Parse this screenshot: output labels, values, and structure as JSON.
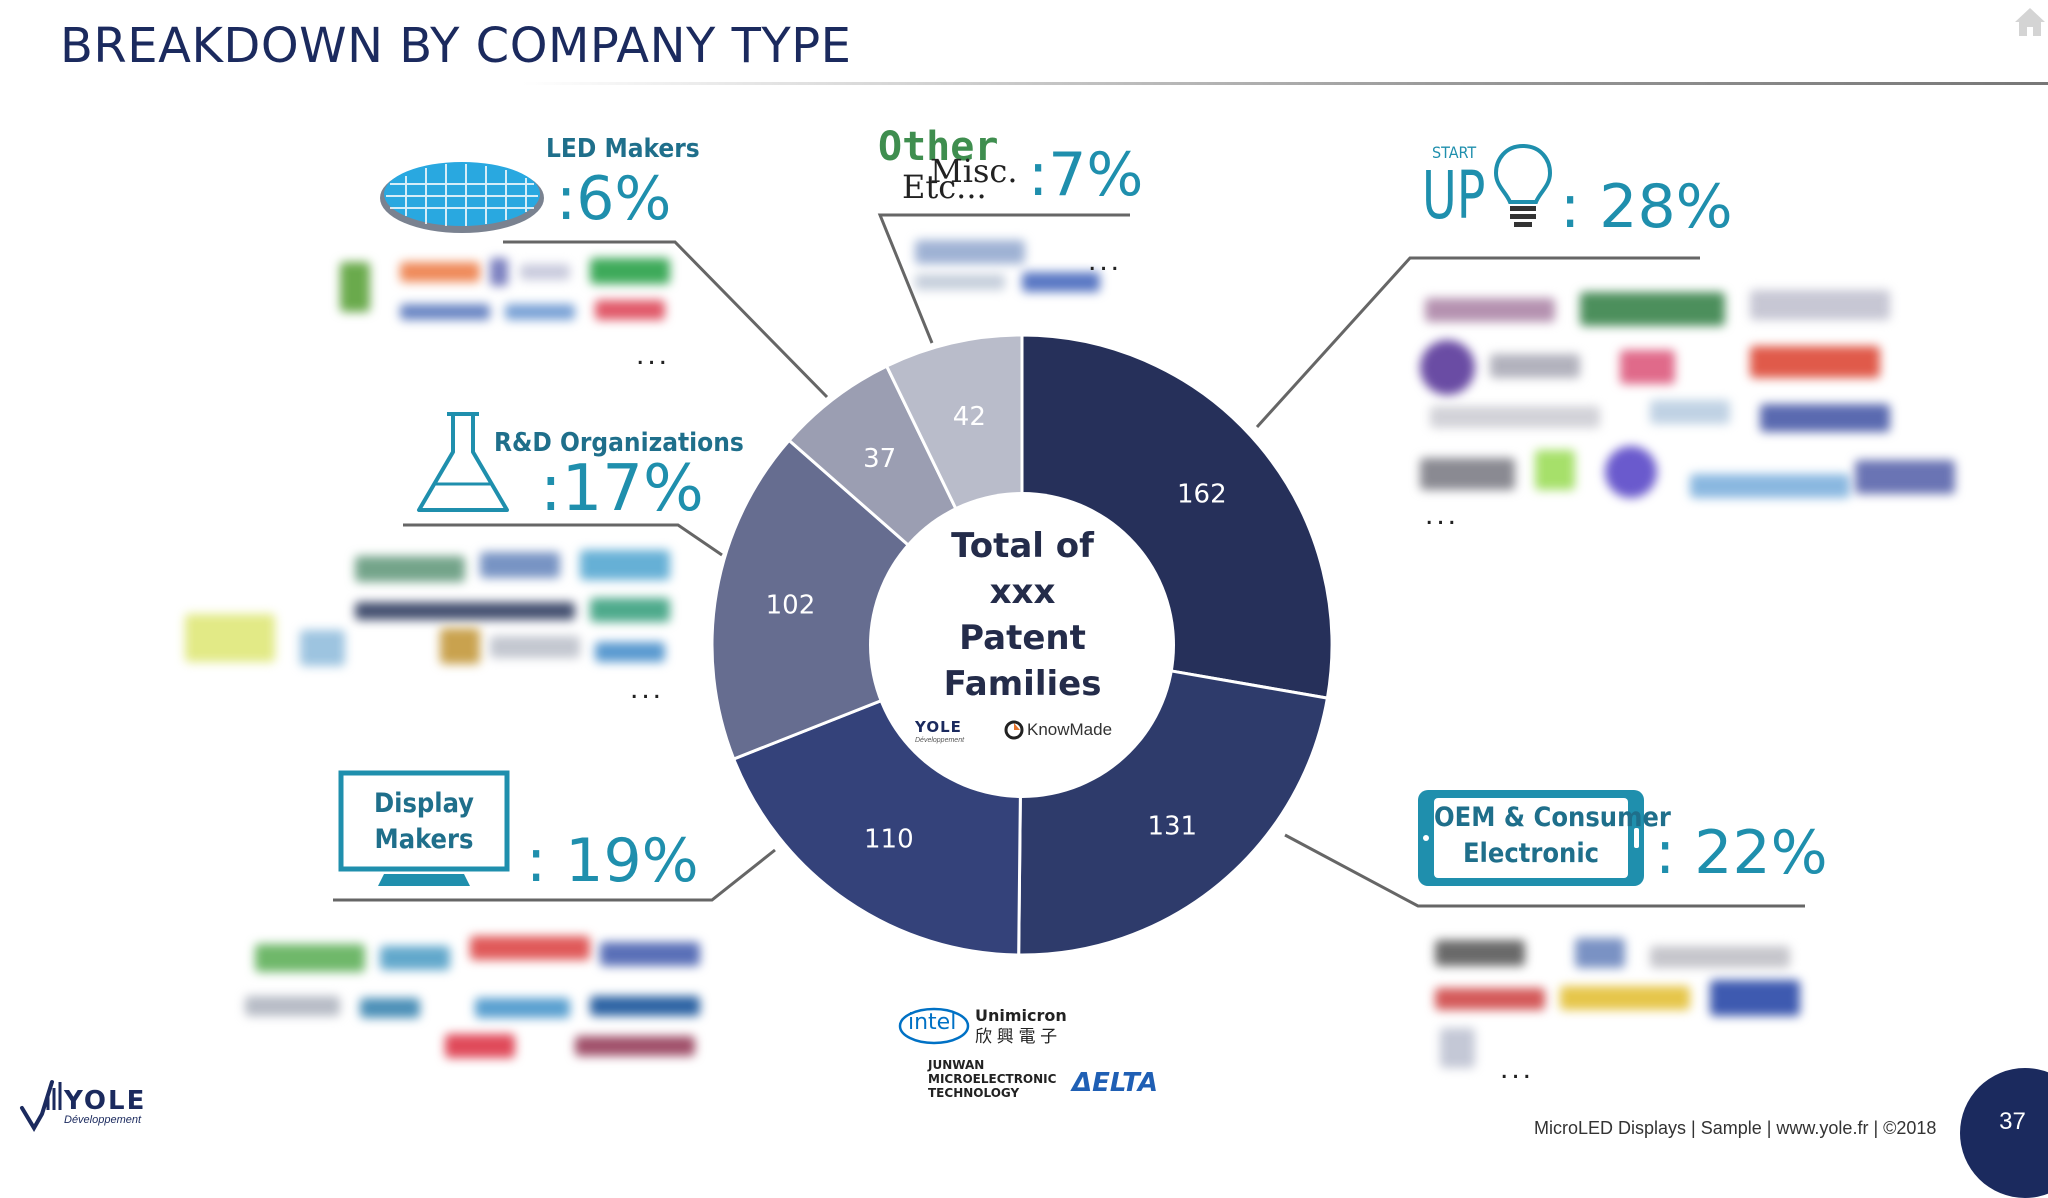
{
  "header": {
    "title": "BREAKDOWN BY COMPANY TYPE"
  },
  "chart_data": {
    "type": "pie",
    "style": "donut",
    "center_label": [
      "Total of",
      "xxx",
      "Patent",
      "Families"
    ],
    "slices": [
      {
        "value": 162,
        "color": "#26305a"
      },
      {
        "value": 131,
        "color": "#2e3b6b"
      },
      {
        "value": 110,
        "color": "#34427a"
      },
      {
        "value": 102,
        "color": "#666d90"
      },
      {
        "value": 37,
        "color": "#9b9eb2"
      },
      {
        "value": 42,
        "color": "#b9bcca"
      }
    ]
  },
  "categories": {
    "startup": {
      "label_top": "START",
      "label_main": "UP",
      "pct": ": 28%",
      "dots": "..."
    },
    "oem": {
      "label": [
        "OEM & Consumer",
        "Electronic"
      ],
      "pct": ": 22%",
      "dots": "..."
    },
    "display": {
      "label": [
        "Display",
        "Makers"
      ],
      "pct": ": 19%"
    },
    "rnd": {
      "label": "R&D Organizations",
      "pct": ":17%",
      "dots": "..."
    },
    "led": {
      "label": "LED Makers",
      "pct": ":6%",
      "dots": "..."
    },
    "other": {
      "label_a": "Other",
      "label_b": "Misc.",
      "label_c": "Etc...",
      "pct": ":7%",
      "dots": "..."
    }
  },
  "center_logos": {
    "yole": "YOLE",
    "yole_sub": "Développement",
    "knowmade": "KnowMade"
  },
  "bottom_logos": {
    "intel": "intel",
    "unimicron": "Unimicron",
    "unimicron_cn": "欣 興 電 子",
    "junwan": [
      "JUNWAN",
      "MICROELECTRONIC",
      "TECHNOLOGY"
    ],
    "delta": "ΔELTA"
  },
  "branding": {
    "logo": "YOLE",
    "logo_sub": "Développement"
  },
  "footer": {
    "text": "MicroLED Displays | Sample | www.yole.fr | ©2018",
    "page": "37"
  },
  "colors": {
    "title": "#1b2a5e",
    "accent": "#1f8fad",
    "label": "#1f6f8b"
  }
}
